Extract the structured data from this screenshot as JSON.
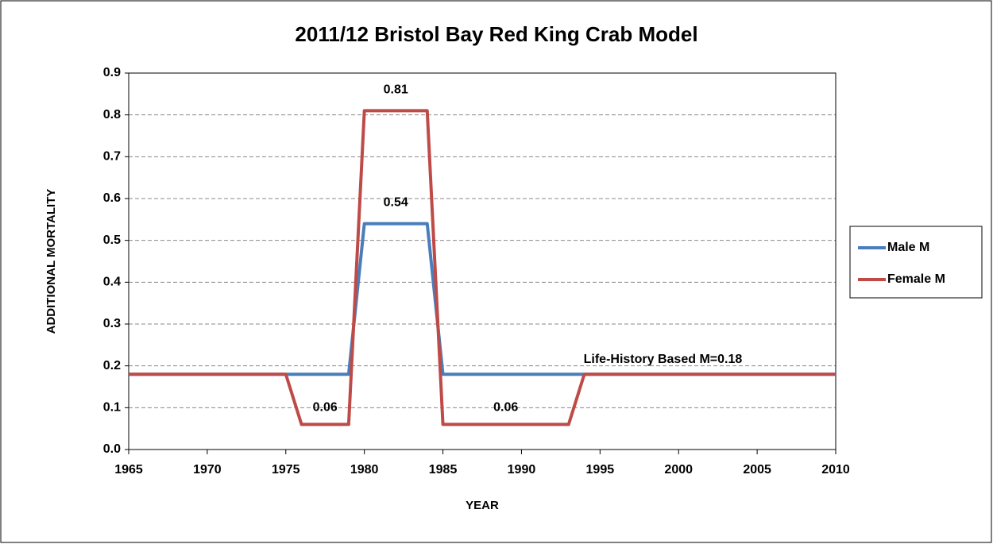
{
  "chart_data": {
    "type": "line",
    "title": "2011/12 Bristol Bay Red King Crab Model",
    "x_label": "YEAR",
    "y_label": "ADDITIONAL MORTALITY",
    "x": [
      1965,
      1975,
      1976,
      1979,
      1980,
      1984,
      1985,
      1993,
      1994,
      2010
    ],
    "series": [
      {
        "name": "Male M",
        "color": "#4a7ebb",
        "values": [
          0.18,
          0.18,
          0.18,
          0.18,
          0.54,
          0.54,
          0.18,
          0.18,
          0.18,
          0.18
        ]
      },
      {
        "name": "Female M",
        "color": "#be4b48",
        "values": [
          0.18,
          0.18,
          0.06,
          0.06,
          0.81,
          0.81,
          0.06,
          0.06,
          0.18,
          0.18
        ]
      }
    ],
    "xlim": [
      1965,
      2010
    ],
    "xticks": [
      1965,
      1970,
      1975,
      1980,
      1985,
      1990,
      1995,
      2000,
      2005,
      2010
    ],
    "ylim": [
      0,
      0.9
    ],
    "yticks": [
      {
        "value": 0,
        "label": "0.0"
      },
      0.1,
      0.2,
      0.3,
      0.4,
      0.5,
      0.6,
      0.7,
      0.8,
      0.9
    ],
    "grid": true,
    "legend": "right",
    "annotations": [
      {
        "text": "0.81",
        "x": 1982,
        "y": 0.86
      },
      {
        "text": "0.54",
        "x": 1982,
        "y": 0.59
      },
      {
        "text": "0.06",
        "x": 1977.5,
        "y": 0.1
      },
      {
        "text": "0.06",
        "x": 1989,
        "y": 0.1
      },
      {
        "text": "Life-History Based M=0.18",
        "x": 1999,
        "y": 0.215
      }
    ]
  }
}
